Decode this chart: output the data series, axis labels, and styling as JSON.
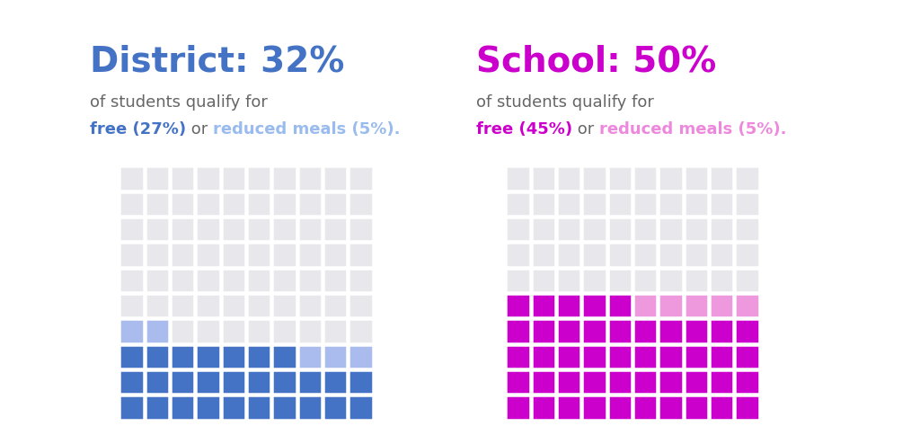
{
  "waffle1": {
    "title_bold": "District: 32%",
    "title_color": "#4472C4",
    "subtitle": "of students qualify for",
    "subtitle_color": "#666666",
    "line3_parts": [
      {
        "text": "free (27%)",
        "color": "#4472C4",
        "bold": true
      },
      {
        "text": " or ",
        "color": "#666666",
        "bold": false
      },
      {
        "text": "reduced meals (5%).",
        "color": "#99BBEE",
        "bold": true
      }
    ],
    "free_pct": 27,
    "reduced_pct": 5,
    "free_color": "#4472C4",
    "reduced_color": "#AABBEE",
    "empty_color": "#E8E8EC"
  },
  "waffle2": {
    "title_bold": "School: 50%",
    "title_color": "#CC00CC",
    "subtitle": "of students qualify for",
    "subtitle_color": "#666666",
    "line3_parts": [
      {
        "text": "free (45%)",
        "color": "#CC00CC",
        "bold": true
      },
      {
        "text": " or ",
        "color": "#666666",
        "bold": false
      },
      {
        "text": "reduced meals (5%).",
        "color": "#EE88DD",
        "bold": true
      }
    ],
    "free_pct": 45,
    "reduced_pct": 5,
    "free_color": "#CC00CC",
    "reduced_color": "#EE99DD",
    "empty_color": "#E8E8EC"
  },
  "grid_size": 10,
  "background_color": "#FFFFFF",
  "title_fontsize": 28,
  "subtitle_fontsize": 13,
  "line3_fontsize": 13
}
